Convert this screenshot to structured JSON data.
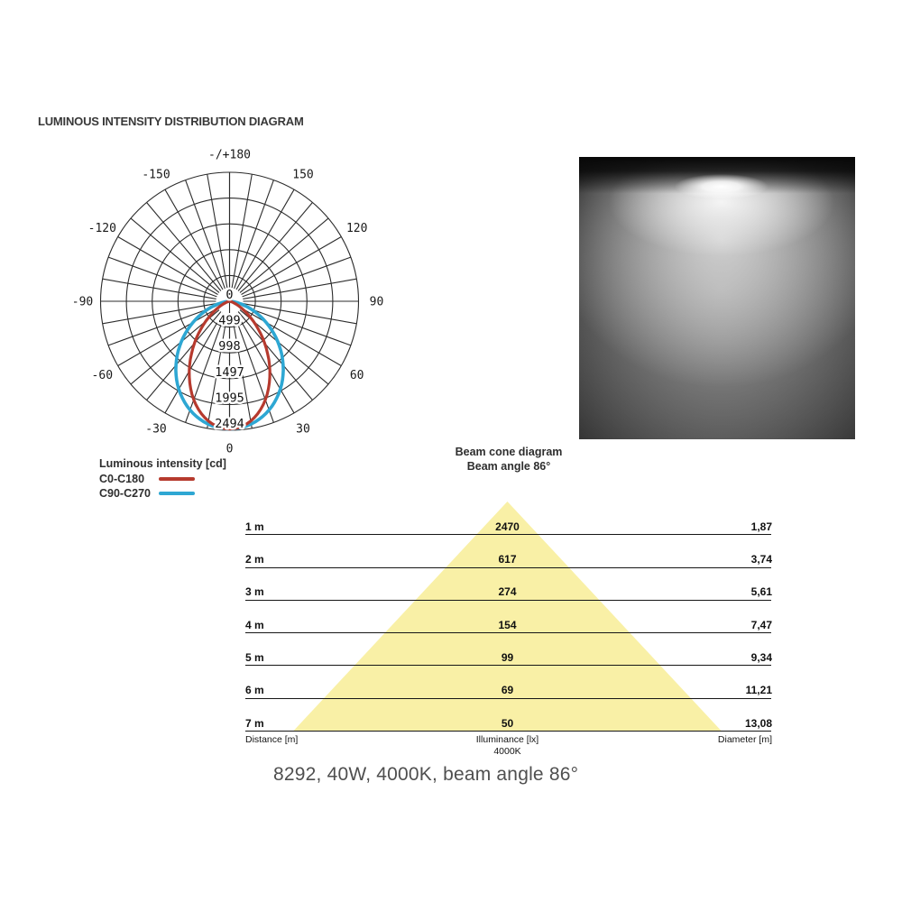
{
  "header": {
    "title": "LUMINOUS INTENSITY DISTRIBUTION DIAGRAM"
  },
  "legend": {
    "title": "Luminous intensity [cd]",
    "items": [
      {
        "label": "C0-C180",
        "color": "#b63a2e"
      },
      {
        "label": "C90-C270",
        "color": "#2ea7d3"
      }
    ]
  },
  "photo": {
    "description": "Photo of downward light beam cone on dark background"
  },
  "cone_section": {
    "title": "Beam cone diagram",
    "subtitle": "Beam angle 86°",
    "footer_left": "Distance [m]",
    "footer_center_line1": "Illuminance [lx]",
    "footer_center_line2": "4000K",
    "footer_right": "Diameter [m]"
  },
  "caption": "8292, 40W, 4000K, beam angle 86°",
  "chart_data": [
    {
      "type": "line",
      "subtype": "polar-photometric",
      "title": "LUMINOUS INTENSITY DISTRIBUTION DIAGRAM",
      "units": "cd",
      "grid_color": "#2b2b2b",
      "label_color": "#1a1a1a",
      "angle_step_deg": 10,
      "rmax": 2494,
      "radial_ticks": [
        0,
        499,
        998,
        1497,
        1995,
        2494
      ],
      "angle_labels": [
        {
          "deg": 180,
          "text": "-/+180"
        },
        {
          "deg": 150,
          "text": "150"
        },
        {
          "deg": -150,
          "text": "-150"
        },
        {
          "deg": 120,
          "text": "120"
        },
        {
          "deg": -120,
          "text": "-120"
        },
        {
          "deg": 90,
          "text": "90"
        },
        {
          "deg": -90,
          "text": "-90"
        },
        {
          "deg": 60,
          "text": "60"
        },
        {
          "deg": -60,
          "text": "-60"
        },
        {
          "deg": 30,
          "text": "30"
        },
        {
          "deg": -30,
          "text": "-30"
        },
        {
          "deg": 0,
          "text": "0"
        }
      ],
      "series": [
        {
          "name": "C0-C180",
          "color": "#b63a2e",
          "width": 3.2,
          "peak_cd": 2470,
          "cos_power": 3.2,
          "points": [
            [
              -90,
              0
            ],
            [
              -80,
              9
            ],
            [
              -70,
              80
            ],
            [
              -60,
              269
            ],
            [
              -50,
              601
            ],
            [
              -40,
              1053
            ],
            [
              -30,
              1559
            ],
            [
              -20,
              2024
            ],
            [
              -10,
              2353
            ],
            [
              0,
              2470
            ],
            [
              10,
              2353
            ],
            [
              20,
              2024
            ],
            [
              30,
              1559
            ],
            [
              40,
              1053
            ],
            [
              50,
              601
            ],
            [
              60,
              269
            ],
            [
              70,
              80
            ],
            [
              80,
              9
            ],
            [
              90,
              0
            ]
          ]
        },
        {
          "name": "C90-C270",
          "color": "#2ea7d3",
          "width": 3.6,
          "peak_cd": 2470,
          "cos_power": 1.6,
          "points": [
            [
              -90,
              0
            ],
            [
              -80,
              150
            ],
            [
              -70,
              444
            ],
            [
              -60,
              815
            ],
            [
              -50,
              1218
            ],
            [
              -40,
              1613
            ],
            [
              -30,
              1962
            ],
            [
              -20,
              2236
            ],
            [
              -10,
              2411
            ],
            [
              0,
              2470
            ],
            [
              10,
              2411
            ],
            [
              20,
              2236
            ],
            [
              30,
              1962
            ],
            [
              40,
              1613
            ],
            [
              50,
              1218
            ],
            [
              60,
              815
            ],
            [
              70,
              444
            ],
            [
              80,
              150
            ],
            [
              90,
              0
            ]
          ]
        }
      ]
    },
    {
      "type": "table",
      "title": "Beam cone diagram",
      "subtitle": "Beam angle 86°",
      "beam_angle_deg": 86,
      "cone_fill": "#f9f0a6",
      "columns": [
        "Distance [m]",
        "Illuminance [lx]",
        "Diameter [m]"
      ],
      "center_note": "4000K",
      "rows": [
        {
          "distance": "1 m",
          "illuminance": "2470",
          "diameter": "1,87"
        },
        {
          "distance": "2 m",
          "illuminance": "617",
          "diameter": "3,74"
        },
        {
          "distance": "3 m",
          "illuminance": "274",
          "diameter": "5,61"
        },
        {
          "distance": "4 m",
          "illuminance": "154",
          "diameter": "7,47"
        },
        {
          "distance": "5 m",
          "illuminance": "99",
          "diameter": "9,34"
        },
        {
          "distance": "6 m",
          "illuminance": "69",
          "diameter": "11,21"
        },
        {
          "distance": "7 m",
          "illuminance": "50",
          "diameter": "13,08"
        }
      ]
    }
  ]
}
